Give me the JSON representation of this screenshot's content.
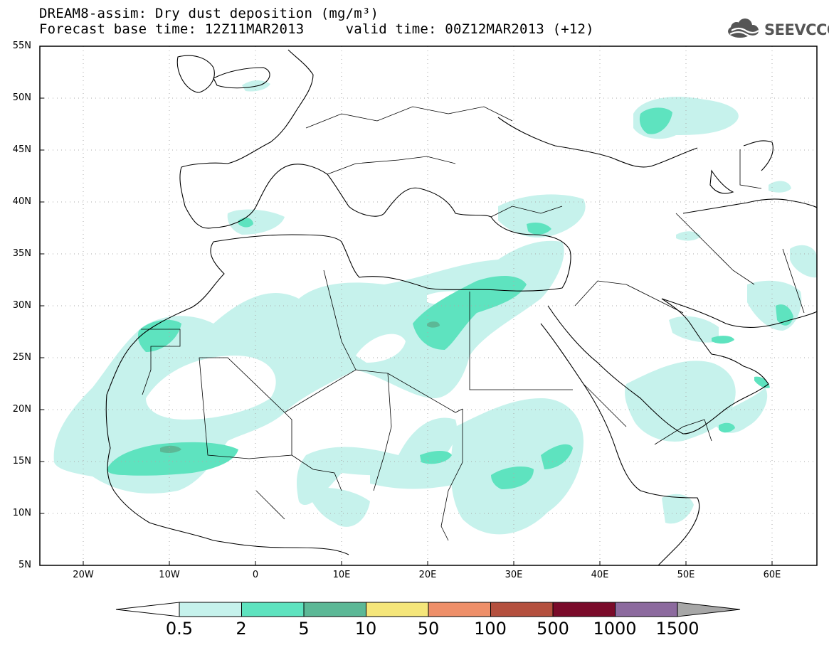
{
  "header": {
    "title_line1": "DREAM8-assim: Dry dust deposition (mg/m³)",
    "title_line2": "Forecast base time: 12Z11MAR2013     valid time: 00Z12MAR2013 (+12)",
    "logo_text": "SEEVCCC"
  },
  "axes": {
    "lat_labels": [
      "55N",
      "50N",
      "45N",
      "40N",
      "35N",
      "30N",
      "25N",
      "20N",
      "15N",
      "10N",
      "5N"
    ],
    "lon_labels": [
      "20W",
      "10W",
      "0",
      "10E",
      "20E",
      "30E",
      "40E",
      "50E",
      "60E"
    ]
  },
  "legend": {
    "labels": [
      "0.5",
      "2",
      "5",
      "10",
      "50",
      "100",
      "500",
      "1000",
      "1500"
    ],
    "colors": [
      "#c6f2ec",
      "#5ee3bf",
      "#5cb896",
      "#f5e67a",
      "#ee8f69",
      "#b4503e",
      "#7a0b2a",
      "#8c6a9e"
    ],
    "under_color": "#ffffff",
    "over_color": "#a7a7a7"
  },
  "fill_colors": {
    "level1": "#c6f2ec",
    "level2": "#5ee3bf",
    "level3": "#5cb896"
  }
}
